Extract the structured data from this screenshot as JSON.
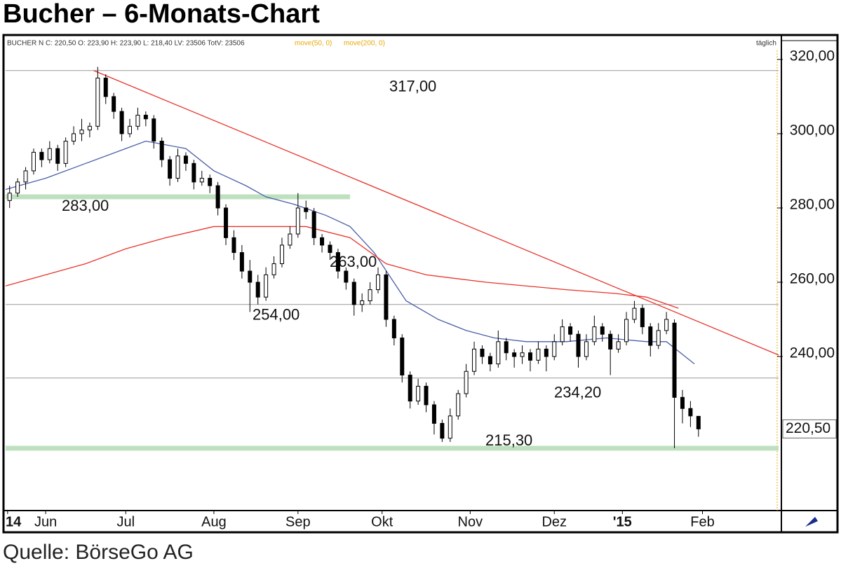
{
  "chart_data": {
    "type": "candlestick",
    "title": "Bucher  – 6-Monats-Chart",
    "info": "BUCHER N C: 220,50 O: 223,90 H: 223,90 L: 218,40 LV: 23506 TotV: 23506",
    "ma_labels": [
      "move(50, 0)",
      "move(200, 0)"
    ],
    "interval": "täglich",
    "source": "Quelle: BörseGo AG",
    "last_label": "220,50",
    "xlim": [
      0,
      193
    ],
    "ylim": [
      198.7,
      326.2
    ],
    "yticks": [
      {
        "value": 240,
        "label": "240,00"
      },
      {
        "value": 260,
        "label": "260,00"
      },
      {
        "value": 280,
        "label": "280,00"
      },
      {
        "value": 300,
        "label": "300,00"
      },
      {
        "value": 320,
        "label": "320,00"
      }
    ],
    "xticks": [
      {
        "value": 0.5,
        "label": "14"
      },
      {
        "value": 10,
        "label": "Jun"
      },
      {
        "value": 30,
        "label": "Jul"
      },
      {
        "value": 52,
        "label": "Aug"
      },
      {
        "value": 73,
        "label": "Sep"
      },
      {
        "value": 94,
        "label": "Okt"
      },
      {
        "value": 116,
        "label": "Nov"
      },
      {
        "value": 137,
        "label": "Dez"
      },
      {
        "value": 154,
        "label": "'15"
      },
      {
        "value": 174,
        "label": "Feb"
      }
    ],
    "x": [
      1,
      3,
      5,
      7,
      9,
      11,
      13,
      15,
      17,
      19,
      21,
      23,
      25,
      27,
      29,
      31,
      33,
      35,
      37,
      39,
      41,
      43,
      45,
      47,
      49,
      51,
      53,
      55,
      57,
      59,
      61,
      63,
      65,
      67,
      69,
      71,
      73,
      75,
      77,
      79,
      81,
      83,
      85,
      87,
      89,
      91,
      93,
      95,
      97,
      99,
      101,
      103,
      105,
      107,
      109,
      111,
      113,
      115,
      117,
      119,
      121,
      123,
      125,
      127,
      129,
      131,
      133,
      135,
      137,
      139,
      141,
      143,
      145,
      147,
      149,
      151,
      153,
      155,
      157,
      159,
      161,
      163,
      165,
      167,
      169,
      171,
      173
    ],
    "ohlc": [
      [
        282,
        286,
        280,
        284
      ],
      [
        284,
        288,
        283,
        287
      ],
      [
        287,
        291,
        285,
        290
      ],
      [
        290,
        296,
        289,
        295
      ],
      [
        295,
        296,
        291,
        293
      ],
      [
        293,
        298,
        292,
        296
      ],
      [
        296,
        297,
        290,
        292
      ],
      [
        292,
        299,
        291,
        298
      ],
      [
        298,
        302,
        297,
        300
      ],
      [
        300,
        304,
        298,
        301
      ],
      [
        301,
        303,
        299,
        302
      ],
      [
        302,
        318,
        301,
        315
      ],
      [
        315,
        316,
        308,
        310
      ],
      [
        310,
        311,
        304,
        306
      ],
      [
        306,
        307,
        298,
        300
      ],
      [
        300,
        304,
        299,
        302
      ],
      [
        302,
        307,
        301,
        305
      ],
      [
        305,
        306,
        302,
        304
      ],
      [
        304,
        305,
        296,
        298
      ],
      [
        298,
        299,
        291,
        293
      ],
      [
        293,
        294,
        286,
        288
      ],
      [
        288,
        296,
        287,
        294
      ],
      [
        294,
        295,
        290,
        292
      ],
      [
        292,
        293,
        285,
        287
      ],
      [
        287,
        290,
        286,
        288
      ],
      [
        288,
        289,
        284,
        286
      ],
      [
        286,
        287,
        278,
        280
      ],
      [
        280,
        281,
        270,
        272
      ],
      [
        272,
        274,
        266,
        268
      ],
      [
        268,
        270,
        261,
        263
      ],
      [
        263,
        266,
        252,
        260
      ],
      [
        260,
        262,
        254,
        256
      ],
      [
        256,
        264,
        255,
        262
      ],
      [
        262,
        267,
        261,
        265
      ],
      [
        265,
        272,
        264,
        270
      ],
      [
        270,
        275,
        269,
        273
      ],
      [
        273,
        284,
        272,
        280
      ],
      [
        280,
        282,
        277,
        279
      ],
      [
        279,
        280,
        270,
        272
      ],
      [
        272,
        273,
        268,
        270
      ],
      [
        270,
        271,
        266,
        268
      ],
      [
        268,
        269,
        261,
        263
      ],
      [
        263,
        264,
        258,
        260
      ],
      [
        260,
        261,
        251,
        254
      ],
      [
        254,
        257,
        252,
        255
      ],
      [
        255,
        260,
        254,
        258
      ],
      [
        258,
        264,
        257,
        262
      ],
      [
        262,
        263,
        248,
        250
      ],
      [
        250,
        251,
        243,
        245
      ],
      [
        245,
        246,
        233,
        235
      ],
      [
        235,
        236,
        226,
        228
      ],
      [
        228,
        234,
        227,
        232
      ],
      [
        232,
        233,
        225,
        227
      ],
      [
        227,
        228,
        219,
        222
      ],
      [
        222,
        223,
        217,
        218
      ],
      [
        218,
        226,
        217,
        224
      ],
      [
        224,
        231,
        223,
        230
      ],
      [
        230,
        238,
        229,
        236
      ],
      [
        236,
        244,
        235,
        242
      ],
      [
        242,
        243,
        238,
        240
      ],
      [
        240,
        241,
        236,
        238
      ],
      [
        238,
        247,
        237,
        244
      ],
      [
        244,
        245,
        239,
        241
      ],
      [
        241,
        242,
        237,
        240
      ],
      [
        240,
        243,
        238,
        241
      ],
      [
        241,
        242,
        236,
        239
      ],
      [
        239,
        244,
        238,
        242
      ],
      [
        242,
        243,
        236,
        240
      ],
      [
        240,
        246,
        239,
        244
      ],
      [
        244,
        250,
        243,
        248
      ],
      [
        248,
        249,
        244,
        246
      ],
      [
        246,
        247,
        237,
        240
      ],
      [
        240,
        246,
        239,
        244
      ],
      [
        244,
        251,
        243,
        248
      ],
      [
        248,
        249,
        244,
        246
      ],
      [
        246,
        247,
        235,
        242
      ],
      [
        242,
        246,
        241,
        244
      ],
      [
        244,
        252,
        243,
        250
      ],
      [
        250,
        255,
        249,
        253
      ],
      [
        253,
        254,
        246,
        248
      ],
      [
        248,
        249,
        240,
        243
      ],
      [
        243,
        249,
        242,
        247
      ],
      [
        247,
        252,
        246,
        250
      ],
      [
        249,
        250,
        215.3,
        229
      ],
      [
        229,
        231,
        222,
        226
      ],
      [
        226,
        228,
        221,
        224
      ],
      [
        223.9,
        223.9,
        218.4,
        220.5
      ]
    ],
    "lines": [
      {
        "color": "#4a5fa8",
        "x": [
          0,
          10,
          20,
          30,
          35,
          45,
          52,
          60,
          65,
          72,
          80,
          86,
          92,
          100,
          108,
          115,
          122,
          130,
          140,
          150,
          160,
          165,
          172
        ],
        "values": [
          285,
          288,
          292,
          296,
          298,
          296,
          290,
          286,
          283,
          281,
          278,
          275,
          268,
          255,
          250,
          247,
          245,
          244,
          244,
          245,
          244,
          244,
          238
        ]
      },
      {
        "color": "#e8332a",
        "x": [
          0,
          10,
          20,
          30,
          40,
          52,
          60,
          75,
          86,
          95,
          105,
          120,
          140,
          152,
          160,
          168
        ],
        "values": [
          259,
          262,
          265,
          269,
          272,
          275,
          275,
          275,
          272,
          265,
          262,
          260,
          258,
          257,
          256,
          253
        ]
      },
      {
        "color": "#e8332a",
        "x": [
          22,
          193
        ],
        "values": [
          317,
          240.4
        ]
      }
    ],
    "levels": [
      {
        "value": 317,
        "label": "317,00",
        "style": "line",
        "x": [
          0,
          193
        ]
      },
      {
        "value": 283,
        "label": "283,00",
        "style": "band",
        "x": [
          0,
          86
        ]
      },
      {
        "value": 254,
        "label": "254,00",
        "style": "line",
        "x": [
          0,
          193
        ]
      },
      {
        "value": 263,
        "label": "263,00",
        "style": "none",
        "x": [
          0,
          0
        ]
      },
      {
        "value": 234.2,
        "label": "234,20",
        "style": "line",
        "x": [
          0,
          193
        ]
      },
      {
        "value": 215.3,
        "label": "215,30",
        "style": "band",
        "x": [
          0,
          193
        ]
      }
    ]
  }
}
